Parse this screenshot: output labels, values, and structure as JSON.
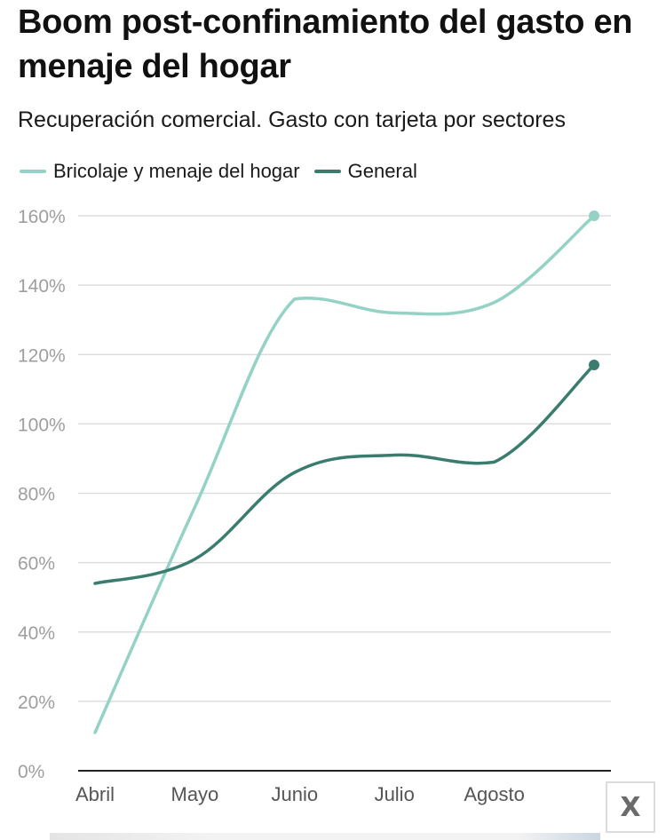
{
  "title": "Boom post-confinamiento del gasto en menaje del hogar",
  "subtitle": "Recuperación comercial. Gasto con tarjeta por sectores",
  "close_button": {
    "label": "X",
    "icon": "close-icon"
  },
  "colors": {
    "bricolaje": "#94d2c5",
    "general": "#3a7d6f",
    "grid": "#dddddd",
    "axis": "#222222",
    "tick_text": "#9e9e9e"
  },
  "chart_data": {
    "type": "line",
    "title": "Boom post-confinamiento del gasto en menaje del hogar",
    "subtitle": "Recuperación comercial. Gasto con tarjeta por sectores",
    "xlabel": "",
    "ylabel": "",
    "categories": [
      "Abril",
      "Mayo",
      "Junio",
      "Julio",
      "Agosto"
    ],
    "x": [
      0,
      1,
      2,
      3,
      4,
      5
    ],
    "x_ticks": [
      0,
      1,
      2,
      3,
      4
    ],
    "ylim": [
      0,
      160
    ],
    "y_ticks": [
      0,
      20,
      40,
      60,
      80,
      100,
      120,
      140,
      160
    ],
    "y_tick_labels": [
      "0%",
      "20%",
      "40%",
      "60%",
      "80%",
      "100%",
      "120%",
      "140%",
      "160%"
    ],
    "grid": true,
    "legend_position": "top-left",
    "series": [
      {
        "name": "Bricolaje y menaje del hogar",
        "color": "#94d2c5",
        "values": [
          11,
          76,
          136,
          132,
          135,
          160
        ],
        "end_marker": true
      },
      {
        "name": "General",
        "color": "#3a7d6f",
        "values": [
          54,
          61,
          86,
          91,
          89,
          117
        ],
        "end_marker": true
      }
    ]
  }
}
